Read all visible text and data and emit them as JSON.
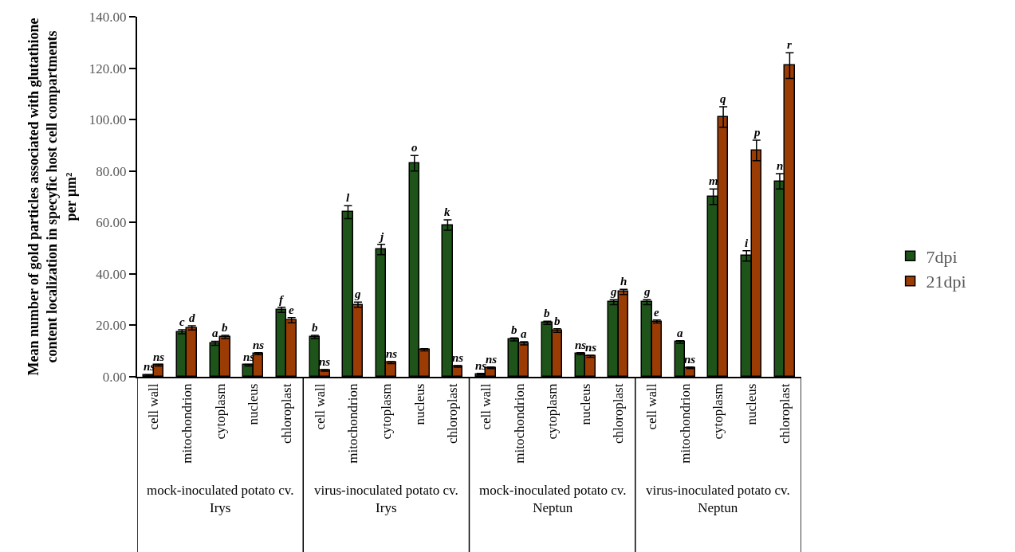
{
  "chart_data": {
    "type": "bar",
    "ylabel": "Mean number of gold particles associated with glutathione\ncontent localization in specyfic host cell compartments\nper µm²",
    "categories": [
      "cell wall",
      "mitochondrion",
      "cytoplasm",
      "nucleus",
      "chloroplast",
      "cell wall",
      "mitochondrion",
      "cytoplasm",
      "nucleus",
      "chloroplast",
      "cell wall",
      "mitochondrion",
      "cytoplasm",
      "nucleus",
      "chloroplast",
      "cell wall",
      "mitochondrion",
      "cytoplasm",
      "nucleus",
      "chloroplast"
    ],
    "series": [
      {
        "name": "7dpi",
        "color": "#1e5419",
        "values": [
          0.5,
          17.5,
          13,
          4.5,
          26,
          15.5,
          64,
          49.5,
          83,
          59,
          1,
          14.5,
          21,
          9,
          29,
          29,
          13.5,
          70,
          47,
          76
        ],
        "errors": [
          0.3,
          0.8,
          0.8,
          0.3,
          1,
          0.6,
          2.5,
          2,
          3,
          2,
          0.3,
          0.6,
          0.6,
          0.4,
          1,
          1,
          0.5,
          3,
          2,
          3
        ],
        "value_labels": [
          "ns",
          "c",
          "a",
          "ns",
          "f",
          "b",
          "l",
          "j",
          "o",
          "k",
          "ns",
          "b",
          "b",
          "ns",
          "g",
          "g",
          "a",
          "m",
          "i",
          "n"
        ]
      },
      {
        "name": "21dpi",
        "color": "#9b3c05",
        "values": [
          4.5,
          19,
          15.5,
          9,
          22,
          2.5,
          28,
          5.5,
          10.5,
          4,
          3.5,
          13,
          18,
          8,
          33,
          21.5,
          3.5,
          101,
          88,
          121
        ],
        "errors": [
          0.3,
          0.8,
          0.6,
          0.4,
          1,
          0.3,
          1,
          0.4,
          0.4,
          0.3,
          0.3,
          0.6,
          0.7,
          0.4,
          1,
          0.6,
          0.3,
          4,
          4,
          5
        ],
        "value_labels": [
          "ns",
          "d",
          "b",
          "ns",
          "e",
          "ns",
          "g",
          "ns",
          null,
          "ns",
          "ns",
          "a",
          "b",
          "ns",
          "h",
          "e",
          "ns",
          "q",
          "p",
          "r"
        ]
      }
    ],
    "ylim": [
      0,
      140
    ],
    "yticks": [
      {
        "value": 0,
        "label": "0.00"
      },
      {
        "value": 20,
        "label": "20.00"
      },
      {
        "value": 40,
        "label": "40.00"
      },
      {
        "value": 60,
        "label": "60.00"
      },
      {
        "value": 80,
        "label": "80.00"
      },
      {
        "value": 100,
        "label": "100.00"
      },
      {
        "value": 120,
        "label": "120.00"
      },
      {
        "value": 140,
        "label": "140.00"
      }
    ],
    "annotations": [
      "mock-inoculated potato cv.\nIrys",
      "virus-inoculated potato cv.\nIrys",
      "mock-inoculated potato cv.\nNeptun",
      "virus-inoculated potato cv.\nNeptun"
    ],
    "grid": false,
    "legend": "right"
  }
}
